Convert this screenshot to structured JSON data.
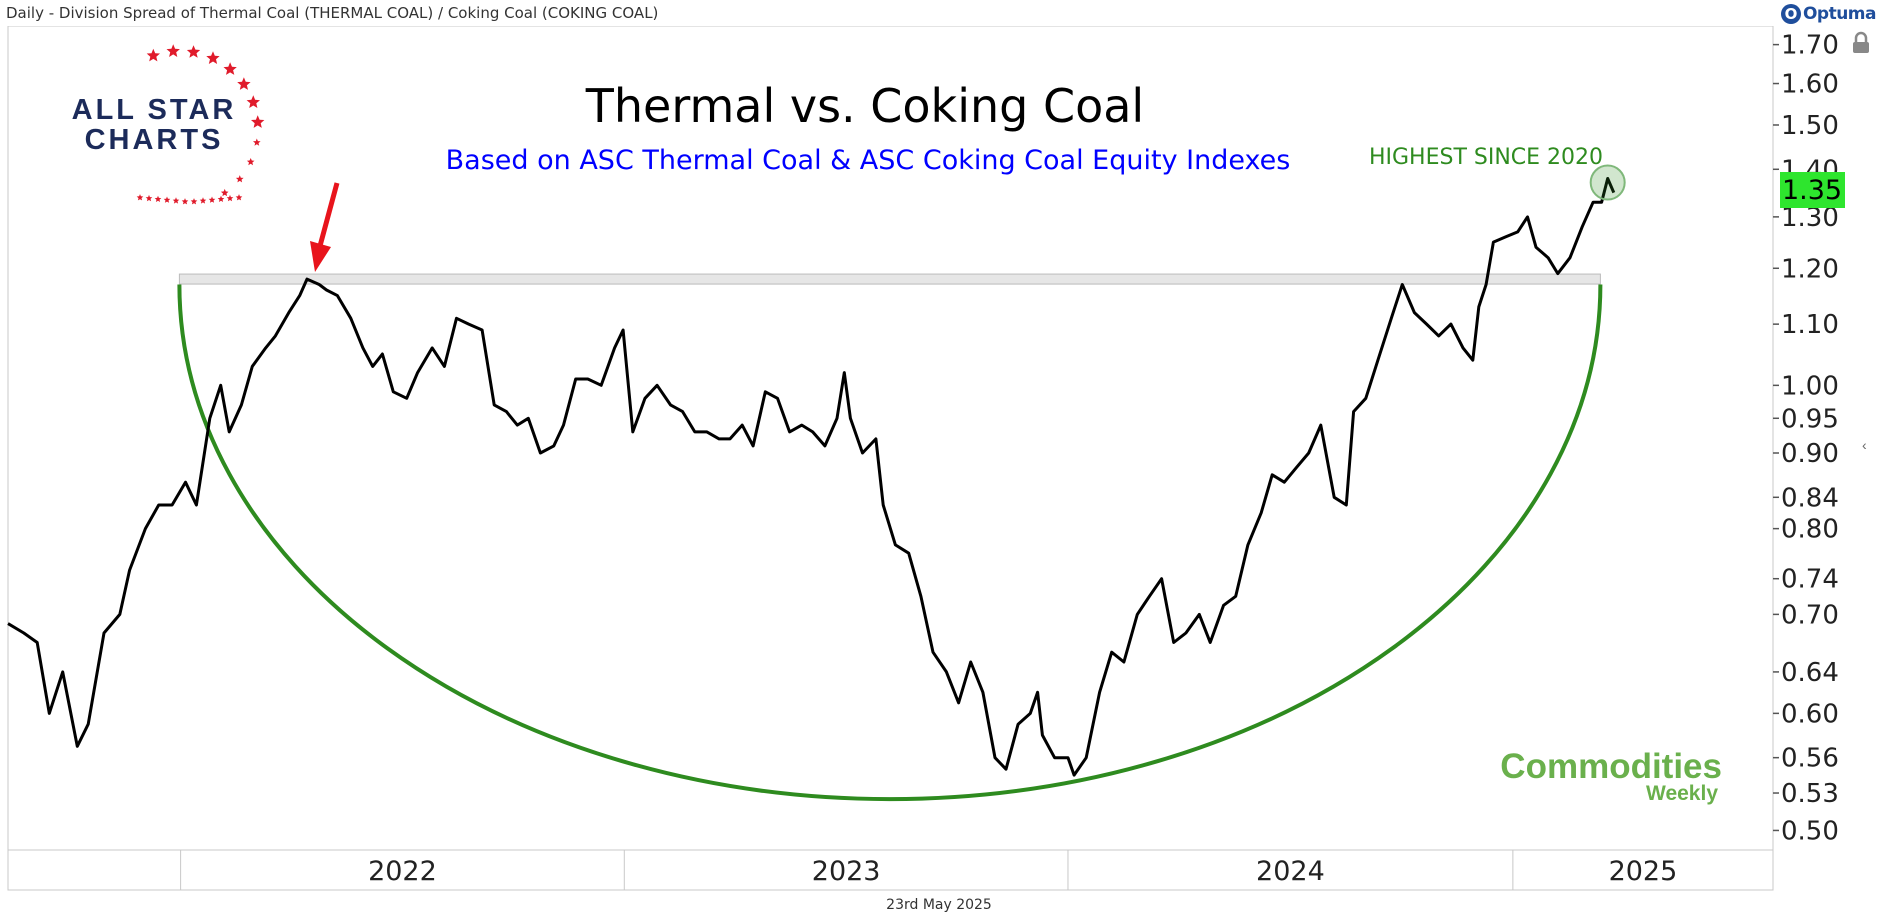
{
  "header": {
    "title": "Daily - Division Spread of Thermal Coal (THERMAL COAL) / Coking Coal (COKING COAL)",
    "brand": "Optuma"
  },
  "footer": {
    "date": "23rd May 2025"
  },
  "watermarks": {
    "all_star_charts": "ALL STAR CHARTS",
    "commodities_weekly": "Commodities Weekly"
  },
  "colors": {
    "price_line": "#000000",
    "arc": "#2e8b1f",
    "title": "#000000",
    "subtitle": "#0000ff",
    "annotation": "#2e8b1f",
    "arrow": "#e8141c",
    "last_value_bg": "#2ee52e",
    "resistance_band": "#e6e6e6",
    "star_red": "#e01b2b",
    "logo_navy": "#1c2b5a",
    "commodities_green": "#6ab04c"
  },
  "chart_data": {
    "type": "line",
    "title": "Thermal vs. Coking Coal",
    "subtitle": "Based on ASC Thermal Coal & ASC Coking Coal Equity Indexes",
    "annotation": "HIGHEST SINCE 2020",
    "last_value": "1.35",
    "y_scale": "log",
    "ylim": [
      0.485,
      1.75
    ],
    "y_ticks": [
      "1.70",
      "1.60",
      "1.50",
      "1.40",
      "1.30",
      "1.20",
      "1.10",
      "1.00",
      "0.95",
      "0.90",
      "0.84",
      "0.80",
      "0.74",
      "0.70",
      "0.64",
      "0.60",
      "0.56",
      "0.53",
      "0.50"
    ],
    "x_range": [
      "2021-08-12",
      "2025-08-03"
    ],
    "x_labels": [
      {
        "label": "2022",
        "date": "2022-01-01"
      },
      {
        "label": "2023",
        "date": "2023-01-01"
      },
      {
        "label": "2024",
        "date": "2024-01-01"
      },
      {
        "label": "2025",
        "date": "2025-01-01"
      }
    ],
    "year_boundaries": [
      "2022-01-01",
      "2023-01-01",
      "2024-01-01",
      "2025-01-01"
    ],
    "resistance": {
      "value": 1.18,
      "from": "2021-12-31",
      "to": "2025-03-14"
    },
    "cup_arc": {
      "left": "2021-12-31",
      "right": "2025-03-14",
      "top_value": 1.17,
      "bottom_value": 0.525
    },
    "series": [
      {
        "values": [
          [
            "2021-08-12",
            0.69
          ],
          [
            "2021-08-25",
            0.68
          ],
          [
            "2021-09-05",
            0.67
          ],
          [
            "2021-09-15",
            0.6
          ],
          [
            "2021-09-26",
            0.64
          ],
          [
            "2021-10-08",
            0.57
          ],
          [
            "2021-10-17",
            0.59
          ],
          [
            "2021-10-30",
            0.68
          ],
          [
            "2021-11-12",
            0.7
          ],
          [
            "2021-11-20",
            0.75
          ],
          [
            "2021-12-03",
            0.8
          ],
          [
            "2021-12-14",
            0.83
          ],
          [
            "2021-12-25",
            0.83
          ],
          [
            "2022-01-05",
            0.86
          ],
          [
            "2022-01-14",
            0.83
          ],
          [
            "2022-01-25",
            0.95
          ],
          [
            "2022-02-03",
            1.0
          ],
          [
            "2022-02-10",
            0.93
          ],
          [
            "2022-02-20",
            0.97
          ],
          [
            "2022-03-01",
            1.03
          ],
          [
            "2022-03-12",
            1.06
          ],
          [
            "2022-03-20",
            1.08
          ],
          [
            "2022-03-31",
            1.12
          ],
          [
            "2022-04-09",
            1.15
          ],
          [
            "2022-04-15",
            1.18
          ],
          [
            "2022-04-25",
            1.17
          ],
          [
            "2022-05-01",
            1.16
          ],
          [
            "2022-05-10",
            1.15
          ],
          [
            "2022-05-21",
            1.11
          ],
          [
            "2022-05-31",
            1.06
          ],
          [
            "2022-06-08",
            1.03
          ],
          [
            "2022-06-16",
            1.05
          ],
          [
            "2022-06-25",
            0.99
          ],
          [
            "2022-07-06",
            0.98
          ],
          [
            "2022-07-15",
            1.02
          ],
          [
            "2022-07-27",
            1.06
          ],
          [
            "2022-08-06",
            1.03
          ],
          [
            "2022-08-16",
            1.11
          ],
          [
            "2022-08-26",
            1.1
          ],
          [
            "2022-09-06",
            1.09
          ],
          [
            "2022-09-16",
            0.97
          ],
          [
            "2022-09-26",
            0.96
          ],
          [
            "2022-10-05",
            0.94
          ],
          [
            "2022-10-14",
            0.95
          ],
          [
            "2022-10-24",
            0.9
          ],
          [
            "2022-11-04",
            0.91
          ],
          [
            "2022-11-12",
            0.94
          ],
          [
            "2022-11-22",
            1.01
          ],
          [
            "2022-12-02",
            1.01
          ],
          [
            "2022-12-13",
            1.0
          ],
          [
            "2022-12-24",
            1.06
          ],
          [
            "2022-12-31",
            1.09
          ],
          [
            "2023-01-08",
            0.93
          ],
          [
            "2023-01-18",
            0.98
          ],
          [
            "2023-01-28",
            1.0
          ],
          [
            "2023-02-08",
            0.97
          ],
          [
            "2023-02-18",
            0.96
          ],
          [
            "2023-02-28",
            0.93
          ],
          [
            "2023-03-10",
            0.93
          ],
          [
            "2023-03-20",
            0.92
          ],
          [
            "2023-03-29",
            0.92
          ],
          [
            "2023-04-08",
            0.94
          ],
          [
            "2023-04-17",
            0.91
          ],
          [
            "2023-04-27",
            0.99
          ],
          [
            "2023-05-07",
            0.98
          ],
          [
            "2023-05-17",
            0.93
          ],
          [
            "2023-05-27",
            0.94
          ],
          [
            "2023-06-05",
            0.93
          ],
          [
            "2023-06-15",
            0.91
          ],
          [
            "2023-06-25",
            0.95
          ],
          [
            "2023-07-01",
            1.02
          ],
          [
            "2023-07-06",
            0.95
          ],
          [
            "2023-07-16",
            0.9
          ],
          [
            "2023-07-27",
            0.92
          ],
          [
            "2023-08-02",
            0.83
          ],
          [
            "2023-08-12",
            0.78
          ],
          [
            "2023-08-23",
            0.77
          ],
          [
            "2023-09-02",
            0.72
          ],
          [
            "2023-09-12",
            0.66
          ],
          [
            "2023-09-23",
            0.64
          ],
          [
            "2023-10-03",
            0.61
          ],
          [
            "2023-10-13",
            0.65
          ],
          [
            "2023-10-23",
            0.62
          ],
          [
            "2023-11-02",
            0.56
          ],
          [
            "2023-11-11",
            0.55
          ],
          [
            "2023-11-21",
            0.59
          ],
          [
            "2023-12-01",
            0.6
          ],
          [
            "2023-12-07",
            0.62
          ],
          [
            "2023-12-11",
            0.58
          ],
          [
            "2023-12-21",
            0.56
          ],
          [
            "2024-01-01",
            0.56
          ],
          [
            "2024-01-06",
            0.545
          ],
          [
            "2024-01-16",
            0.56
          ],
          [
            "2024-01-27",
            0.62
          ],
          [
            "2024-02-06",
            0.66
          ],
          [
            "2024-02-16",
            0.65
          ],
          [
            "2024-02-27",
            0.7
          ],
          [
            "2024-03-08",
            0.72
          ],
          [
            "2024-03-18",
            0.74
          ],
          [
            "2024-03-28",
            0.67
          ],
          [
            "2024-04-07",
            0.68
          ],
          [
            "2024-04-18",
            0.7
          ],
          [
            "2024-04-27",
            0.67
          ],
          [
            "2024-05-08",
            0.71
          ],
          [
            "2024-05-18",
            0.72
          ],
          [
            "2024-05-28",
            0.78
          ],
          [
            "2024-06-08",
            0.82
          ],
          [
            "2024-06-17",
            0.87
          ],
          [
            "2024-06-27",
            0.86
          ],
          [
            "2024-07-07",
            0.88
          ],
          [
            "2024-07-17",
            0.9
          ],
          [
            "2024-07-27",
            0.94
          ],
          [
            "2024-08-07",
            0.84
          ],
          [
            "2024-08-17",
            0.83
          ],
          [
            "2024-08-23",
            0.96
          ],
          [
            "2024-09-02",
            0.98
          ],
          [
            "2024-09-12",
            1.04
          ],
          [
            "2024-09-23",
            1.11
          ],
          [
            "2024-10-02",
            1.17
          ],
          [
            "2024-10-12",
            1.12
          ],
          [
            "2024-10-22",
            1.1
          ],
          [
            "2024-11-01",
            1.08
          ],
          [
            "2024-11-11",
            1.1
          ],
          [
            "2024-11-21",
            1.06
          ],
          [
            "2024-11-29",
            1.04
          ],
          [
            "2024-12-04",
            1.13
          ],
          [
            "2024-12-10",
            1.17
          ],
          [
            "2024-12-16",
            1.25
          ],
          [
            "2024-12-26",
            1.26
          ],
          [
            "2025-01-05",
            1.27
          ],
          [
            "2025-01-13",
            1.3
          ],
          [
            "2025-01-20",
            1.24
          ],
          [
            "2025-01-30",
            1.22
          ],
          [
            "2025-02-07",
            1.19
          ],
          [
            "2025-02-17",
            1.22
          ],
          [
            "2025-02-27",
            1.28
          ],
          [
            "2025-03-08",
            1.33
          ],
          [
            "2025-03-15",
            1.33
          ],
          [
            "2025-03-20",
            1.38
          ],
          [
            "2025-03-25",
            1.35
          ]
        ]
      }
    ]
  }
}
